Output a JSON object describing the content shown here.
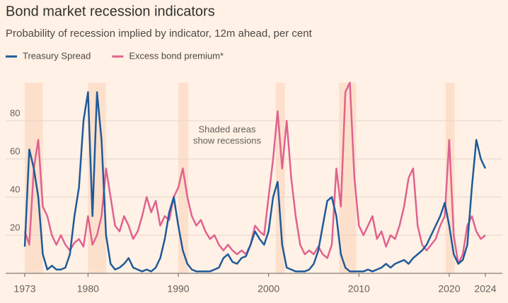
{
  "chart_data": {
    "type": "line",
    "title": "Bond market recession indicators",
    "subtitle": "Probability of recession implied by indicator, 12m ahead, per cent",
    "annotation": [
      "Shaded areas",
      "show recessions"
    ],
    "recessions": [
      [
        1973,
        1975
      ],
      [
        1980,
        1982
      ],
      [
        1990,
        1991.1
      ],
      [
        2000.8,
        2001.8
      ],
      [
        2007.8,
        2009.7
      ],
      [
        2019.6,
        2020.6
      ]
    ],
    "x": [
      1973,
      1973.5,
      1974,
      1974.5,
      1975,
      1975.5,
      1976,
      1976.5,
      1977,
      1977.5,
      1978,
      1978.5,
      1979,
      1979.5,
      1980,
      1980.5,
      1981,
      1981.5,
      1982,
      1982.5,
      1983,
      1983.5,
      1984,
      1984.5,
      1985,
      1985.5,
      1986,
      1986.5,
      1987,
      1987.5,
      1988,
      1988.5,
      1989,
      1989.5,
      1990,
      1990.5,
      1991,
      1991.5,
      1992,
      1992.5,
      1993,
      1993.5,
      1994,
      1994.5,
      1995,
      1995.5,
      1996,
      1996.5,
      1997,
      1997.5,
      1998,
      1998.5,
      1999,
      1999.5,
      2000,
      2000.5,
      2001,
      2001.5,
      2002,
      2002.5,
      2003,
      2003.5,
      2004,
      2004.5,
      2005,
      2005.5,
      2006,
      2006.5,
      2007,
      2007.5,
      2008,
      2008.5,
      2009,
      2009.5,
      2010,
      2010.5,
      2011,
      2011.5,
      2012,
      2012.5,
      2013,
      2013.5,
      2014,
      2014.5,
      2015,
      2015.5,
      2016,
      2016.5,
      2017,
      2017.5,
      2018,
      2018.5,
      2019,
      2019.5,
      2020,
      2020.5,
      2021,
      2021.5,
      2022,
      2022.5,
      2023,
      2023.5,
      2024
    ],
    "series": [
      {
        "name": "Treasury Spread",
        "color": "#1f5a99",
        "values": [
          14,
          65,
          55,
          40,
          10,
          2,
          4,
          2,
          2,
          3,
          10,
          30,
          45,
          80,
          95,
          30,
          95,
          70,
          20,
          5,
          2,
          3,
          5,
          8,
          3,
          2,
          1,
          2,
          1,
          3,
          8,
          18,
          32,
          40,
          25,
          12,
          5,
          2,
          1,
          1,
          1,
          1,
          2,
          3,
          8,
          10,
          6,
          5,
          8,
          9,
          15,
          22,
          18,
          15,
          22,
          40,
          48,
          15,
          3,
          2,
          1,
          1,
          1,
          2,
          5,
          12,
          25,
          38,
          40,
          30,
          10,
          3,
          1,
          1,
          1,
          1,
          2,
          1,
          2,
          3,
          5,
          3,
          5,
          6,
          7,
          5,
          8,
          10,
          12,
          15,
          20,
          25,
          30,
          37,
          25,
          10,
          5,
          7,
          15,
          45,
          70,
          60,
          55
        ]
      },
      {
        "name": "Excess bond premium*",
        "color": "#e0628f",
        "values": [
          22,
          15,
          55,
          70,
          35,
          30,
          20,
          15,
          20,
          15,
          12,
          16,
          18,
          14,
          30,
          15,
          20,
          30,
          55,
          40,
          25,
          22,
          30,
          25,
          18,
          22,
          30,
          40,
          32,
          38,
          25,
          30,
          28,
          40,
          45,
          55,
          40,
          30,
          25,
          28,
          22,
          18,
          20,
          15,
          12,
          15,
          12,
          10,
          12,
          10,
          15,
          25,
          22,
          20,
          40,
          60,
          85,
          55,
          80,
          50,
          30,
          15,
          10,
          12,
          10,
          14,
          10,
          8,
          15,
          55,
          35,
          95,
          100,
          50,
          25,
          20,
          25,
          30,
          18,
          22,
          14,
          20,
          18,
          25,
          35,
          50,
          55,
          25,
          15,
          12,
          15,
          18,
          25,
          30,
          70,
          20,
          5,
          10,
          25,
          30,
          22,
          18,
          20
        ]
      }
    ],
    "xlim": [
      1973,
      2024
    ],
    "ylim": [
      0,
      100
    ],
    "xticks": [
      1973,
      1980,
      1990,
      2000,
      2010,
      2020,
      2024
    ],
    "yticks": [
      20,
      40,
      60,
      80
    ],
    "grid": true
  }
}
